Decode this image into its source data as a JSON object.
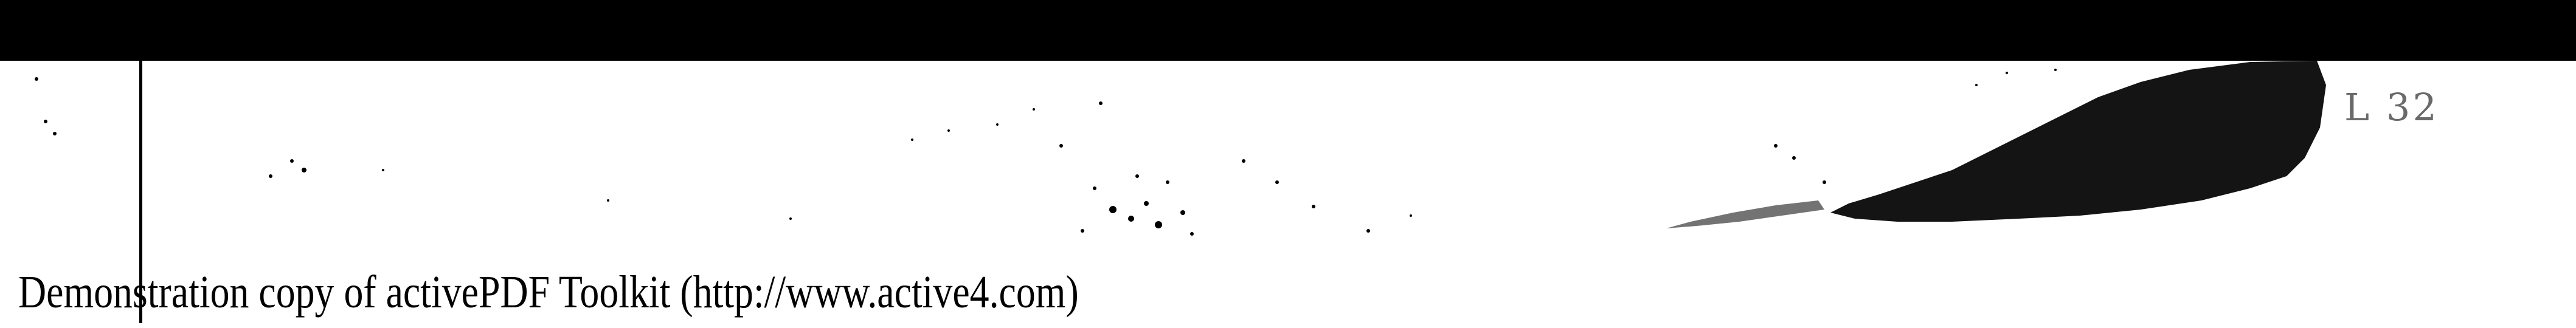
{
  "page_number": "L 32",
  "watermark": "Demonstration copy of activePDF Toolkit (http://www.active4.com)",
  "colors": {
    "background": "#ffffff",
    "ink": "#000000",
    "page_number": "#6a6a6a"
  }
}
